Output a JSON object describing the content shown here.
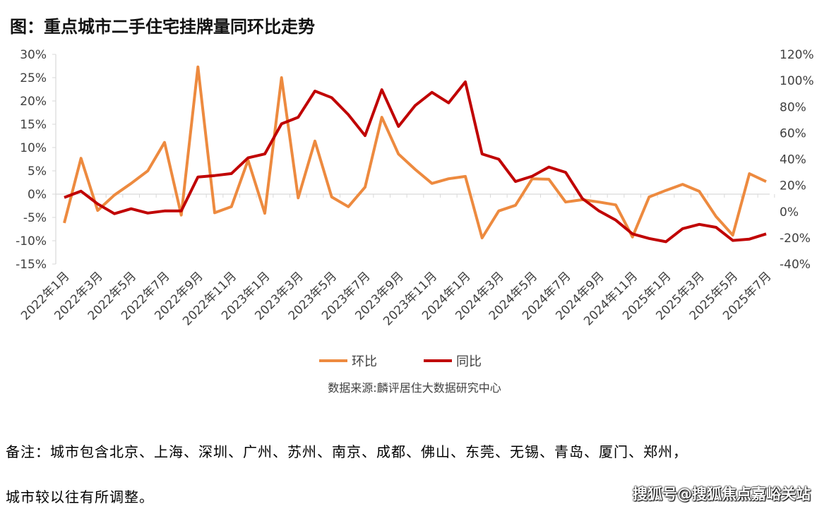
{
  "title": "图：重点城市二手住宅挂牌量同环比走势",
  "source": "数据来源:麟评居住大数据研究中心",
  "note_line1": "备注：城市包含北京、上海、深圳、广州、苏州、南京、成都、佛山、东莞、无锡、青岛、厦门、郑州，",
  "note_line2": "城市较以往有所调整。",
  "watermark": "搜狐号@搜狐焦点嘉峪关站",
  "chart_data": {
    "type": "line",
    "title": "图：重点城市二手住宅挂牌量同环比走势",
    "x": [
      "2022年1月",
      "2022年2月",
      "2022年3月",
      "2022年4月",
      "2022年5月",
      "2022年6月",
      "2022年7月",
      "2022年8月",
      "2022年9月",
      "2022年10月",
      "2022年11月",
      "2022年12月",
      "2023年1月",
      "2023年2月",
      "2023年3月",
      "2023年4月",
      "2023年5月",
      "2023年6月",
      "2023年7月",
      "2023年8月",
      "2023年9月",
      "2023年10月",
      "2023年11月",
      "2023年12月",
      "2024年1月",
      "2024年2月",
      "2024年3月",
      "2024年4月",
      "2024年5月",
      "2024年6月",
      "2024年7月",
      "2024年8月",
      "2024年9月",
      "2024年10月",
      "2024年11月",
      "2024年12月",
      "2025年1月",
      "2025年2月",
      "2025年3月",
      "2025年4月",
      "2025年5月",
      "2025年6月",
      "2025年7月"
    ],
    "x_tick_labels": [
      "2022年1月",
      "2022年3月",
      "2022年5月",
      "2022年7月",
      "2022年9月",
      "2022年11月",
      "2023年1月",
      "2023年3月",
      "2023年5月",
      "2023年7月",
      "2023年9月",
      "2023年11月",
      "2024年1月",
      "2024年3月",
      "2024年5月",
      "2024年7月",
      "2024年9月",
      "2024年11月",
      "2025年1月",
      "2025年3月",
      "2025年5月",
      "2025年7月"
    ],
    "left_axis": {
      "ylim": [
        -15,
        30
      ],
      "ticks": [
        "30%",
        "25%",
        "20%",
        "15%",
        "10%",
        "5%",
        "0%",
        "-5%",
        "-10%",
        "-15%"
      ]
    },
    "right_axis": {
      "ylim": [
        -40,
        120
      ],
      "ticks": [
        "120%",
        "100%",
        "80%",
        "60%",
        "40%",
        "20%",
        "0%",
        "-20%",
        "-40%"
      ]
    },
    "series": [
      {
        "name": "环比",
        "axis": "left",
        "color": "#ED8A3F",
        "values": [
          -6.2,
          7.7,
          -3.5,
          -0.2,
          2.3,
          5.0,
          11.1,
          -4.5,
          27.3,
          -4.0,
          -2.7,
          7.3,
          -4.1,
          25.0,
          -0.8,
          11.4,
          -0.6,
          -2.7,
          1.5,
          16.5,
          8.6,
          5.3,
          2.3,
          3.3,
          3.8,
          -9.4,
          -3.6,
          -2.4,
          3.3,
          3.2,
          -1.7,
          -1.2,
          -1.7,
          -2.3,
          -9.2,
          -0.6,
          0.8,
          2.1,
          0.6,
          -4.8,
          -8.8,
          4.4,
          2.7
        ]
      },
      {
        "name": "同比",
        "axis": "right",
        "color": "#C00000",
        "values": [
          10.8,
          15.6,
          5.9,
          -1.6,
          2.2,
          -1.1,
          0.5,
          0.5,
          26.4,
          27.5,
          29,
          41,
          44,
          67,
          72,
          92,
          87,
          74,
          58,
          93,
          65,
          81,
          91,
          83,
          99,
          44,
          40,
          23,
          27,
          34,
          30,
          10,
          0.5,
          -6.5,
          -17,
          -20.5,
          -23,
          -13,
          -9.7,
          -12,
          -22,
          -21,
          -17
        ]
      }
    ],
    "legend": "bottom",
    "grid": false
  }
}
